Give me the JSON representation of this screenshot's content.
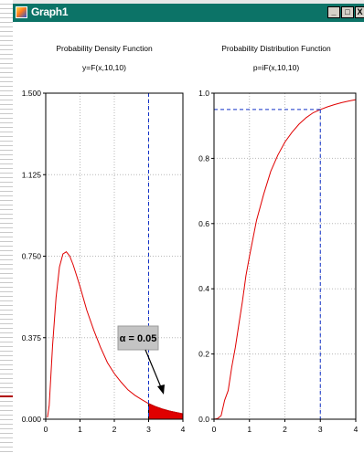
{
  "window": {
    "title": "Graph1",
    "buttons": {
      "minimize": "_",
      "maximize": "□",
      "close": "X"
    }
  },
  "colors": {
    "titlebar": "#0c7367",
    "curve": "#e00000",
    "dashed": "#1030c8",
    "shade": "#e00000"
  },
  "chart_data": [
    {
      "type": "line",
      "title": "Probability Density Function",
      "subtitle": "y=F(x,10,10)",
      "xlim": [
        0,
        4
      ],
      "ylim": [
        0,
        1.5
      ],
      "xticks": [
        0,
        1,
        2,
        3,
        4
      ],
      "yticks": [
        0,
        0.375,
        0.75,
        1.125,
        1.5
      ],
      "ytick_labels": [
        "0.000",
        "0.375",
        "0.750",
        "1.125",
        "1.500"
      ],
      "grid": true,
      "distribution": "F(10,10)",
      "critical_x": 3,
      "shaded_region": [
        3,
        4
      ],
      "annotation": "α = 0.05",
      "x": [
        0.05,
        0.1,
        0.2,
        0.3,
        0.4,
        0.5,
        0.6,
        0.7,
        0.8,
        0.9,
        1.0,
        1.2,
        1.4,
        1.6,
        1.8,
        2.0,
        2.2,
        2.4,
        2.6,
        2.8,
        3.0,
        3.2,
        3.4,
        3.6,
        3.8,
        4.0
      ],
      "y": [
        0.008,
        0.063,
        0.34,
        0.56,
        0.7,
        0.76,
        0.77,
        0.75,
        0.71,
        0.66,
        0.61,
        0.5,
        0.41,
        0.33,
        0.26,
        0.21,
        0.17,
        0.135,
        0.11,
        0.09,
        0.072,
        0.058,
        0.047,
        0.038,
        0.031,
        0.025
      ]
    },
    {
      "type": "line",
      "title": "Probability Distribution Function",
      "subtitle": "p=iF(x,10,10)",
      "xlim": [
        0,
        4
      ],
      "ylim": [
        0,
        1.0
      ],
      "xticks": [
        0,
        1,
        2,
        3,
        4
      ],
      "yticks": [
        0,
        0.2,
        0.4,
        0.6,
        0.8,
        1.0
      ],
      "ytick_labels": [
        "0.0",
        "0.2",
        "0.4",
        "0.6",
        "0.8",
        "1.0"
      ],
      "grid": true,
      "critical_x": 3,
      "critical_p": 0.95,
      "x": [
        0.0,
        0.1,
        0.2,
        0.3,
        0.4,
        0.5,
        0.6,
        0.7,
        0.8,
        0.9,
        1.0,
        1.2,
        1.4,
        1.6,
        1.8,
        2.0,
        2.2,
        2.4,
        2.6,
        2.8,
        3.0,
        3.2,
        3.4,
        3.6,
        3.8,
        4.0
      ],
      "y": [
        0.0,
        0.002,
        0.011,
        0.058,
        0.088,
        0.16,
        0.22,
        0.29,
        0.36,
        0.44,
        0.5,
        0.61,
        0.69,
        0.76,
        0.81,
        0.85,
        0.88,
        0.905,
        0.925,
        0.94,
        0.95,
        0.958,
        0.965,
        0.971,
        0.976,
        0.98
      ]
    }
  ]
}
